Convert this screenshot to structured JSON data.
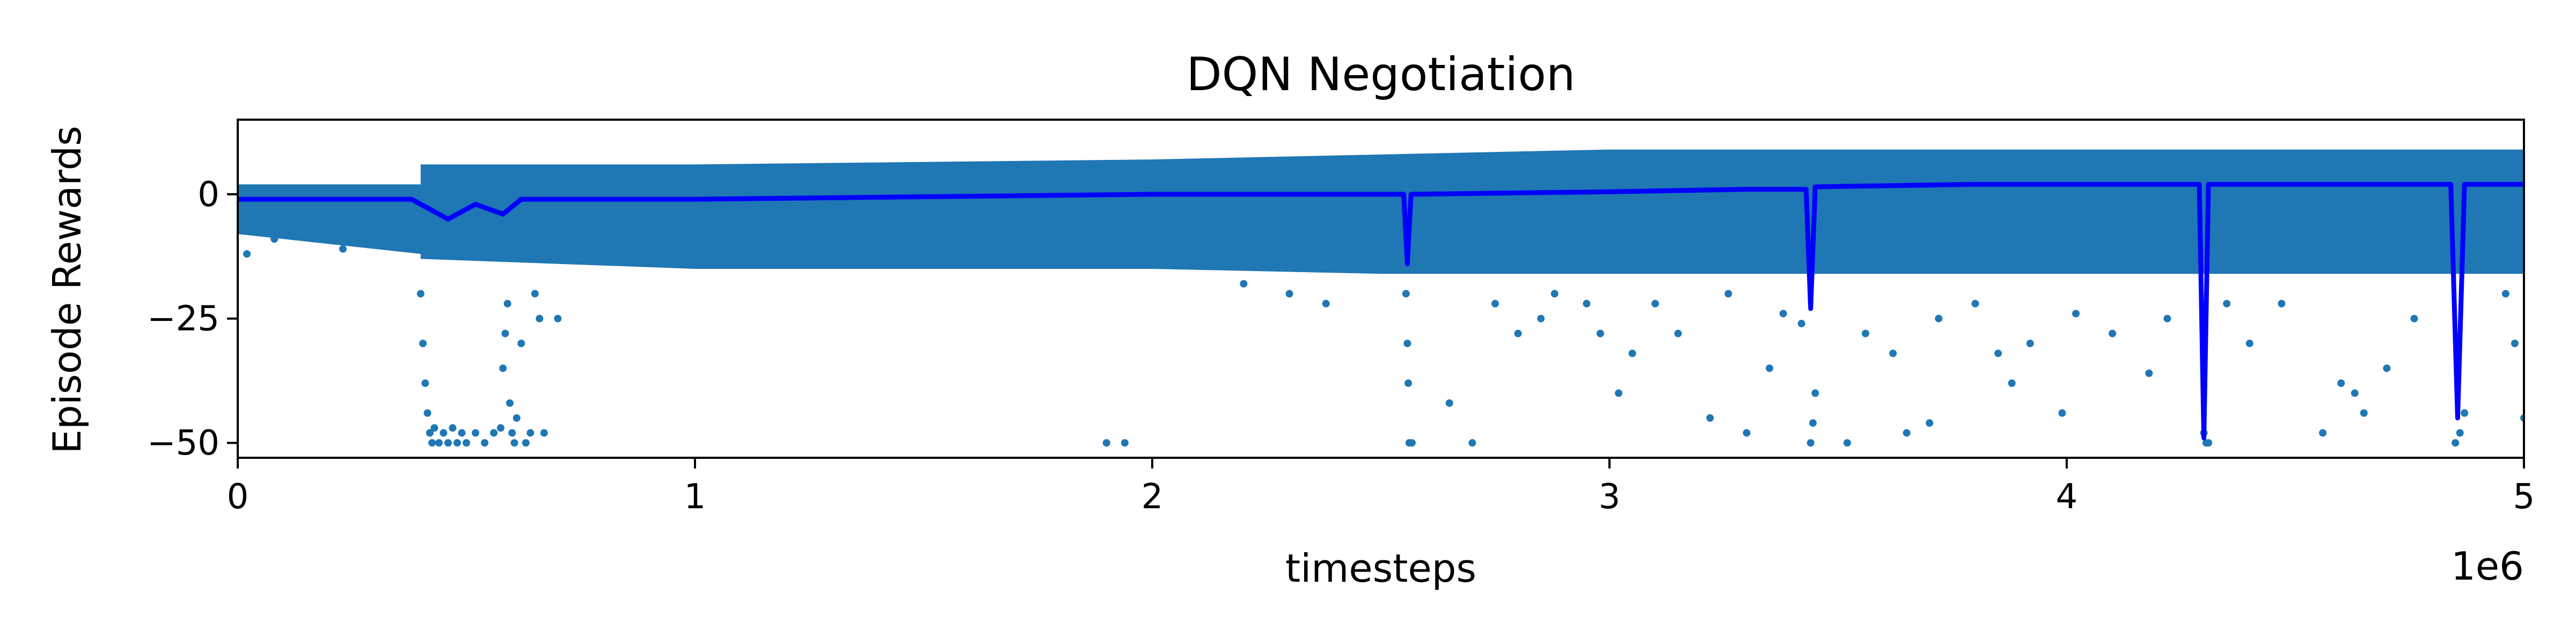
{
  "colors": {
    "scatter": "#1f77b4",
    "mean_line": "#0000ff",
    "axes": "#000000",
    "background": "#ffffff"
  },
  "chart_data": {
    "type": "scatter",
    "title": "DQN Negotiation",
    "xlabel": "timesteps",
    "ylabel": "Episode Rewards",
    "x_offset_label": "1e6",
    "xlim": [
      0,
      5000000
    ],
    "ylim": [
      -53,
      15
    ],
    "x_ticks": [
      {
        "value": 0,
        "label": "0"
      },
      {
        "value": 1000000,
        "label": "1"
      },
      {
        "value": 2000000,
        "label": "2"
      },
      {
        "value": 3000000,
        "label": "3"
      },
      {
        "value": 4000000,
        "label": "4"
      },
      {
        "value": 5000000,
        "label": "5"
      }
    ],
    "y_ticks": [
      {
        "value": 0,
        "label": "0"
      },
      {
        "value": -25,
        "label": "−25"
      },
      {
        "value": -50,
        "label": "−50"
      }
    ],
    "grid": false,
    "legend": "none",
    "series": [
      {
        "kind": "scatter",
        "description_band": [
          {
            "x": 0,
            "low": -8,
            "high": 2
          },
          {
            "x": 400000,
            "low": -12,
            "high": 2
          },
          {
            "x": 400001,
            "low": -13,
            "high": 6
          },
          {
            "x": 1000000,
            "low": -15,
            "high": 6
          },
          {
            "x": 2000000,
            "low": -15,
            "high": 7
          },
          {
            "x": 2500000,
            "low": -16,
            "high": 8
          },
          {
            "x": 3000000,
            "low": -16,
            "high": 9
          },
          {
            "x": 3500000,
            "low": -16,
            "high": 9
          },
          {
            "x": 4000000,
            "low": -16,
            "high": 9
          },
          {
            "x": 4500000,
            "low": -16,
            "high": 9
          },
          {
            "x": 5000000,
            "low": -16,
            "high": 9
          }
        ],
        "outliers": [
          {
            "x": 20000,
            "y": -12
          },
          {
            "x": 80000,
            "y": -9
          },
          {
            "x": 230000,
            "y": -11
          },
          {
            "x": 330000,
            "y": -9
          },
          {
            "x": 400000,
            "y": -20
          },
          {
            "x": 405000,
            "y": -30
          },
          {
            "x": 410000,
            "y": -38
          },
          {
            "x": 415000,
            "y": -44
          },
          {
            "x": 420000,
            "y": -48
          },
          {
            "x": 425000,
            "y": -50
          },
          {
            "x": 430000,
            "y": -47
          },
          {
            "x": 440000,
            "y": -50
          },
          {
            "x": 450000,
            "y": -48
          },
          {
            "x": 460000,
            "y": -50
          },
          {
            "x": 470000,
            "y": -47
          },
          {
            "x": 480000,
            "y": -50
          },
          {
            "x": 490000,
            "y": -48
          },
          {
            "x": 500000,
            "y": -50
          },
          {
            "x": 520000,
            "y": -48
          },
          {
            "x": 540000,
            "y": -50
          },
          {
            "x": 560000,
            "y": -48
          },
          {
            "x": 575000,
            "y": -47
          },
          {
            "x": 580000,
            "y": -35
          },
          {
            "x": 585000,
            "y": -28
          },
          {
            "x": 590000,
            "y": -22
          },
          {
            "x": 595000,
            "y": -42
          },
          {
            "x": 600000,
            "y": -48
          },
          {
            "x": 605000,
            "y": -50
          },
          {
            "x": 610000,
            "y": -45
          },
          {
            "x": 620000,
            "y": -30
          },
          {
            "x": 630000,
            "y": -50
          },
          {
            "x": 640000,
            "y": -48
          },
          {
            "x": 650000,
            "y": -20
          },
          {
            "x": 660000,
            "y": -25
          },
          {
            "x": 670000,
            "y": -48
          },
          {
            "x": 700000,
            "y": -25
          },
          {
            "x": 1900000,
            "y": -50
          },
          {
            "x": 1940000,
            "y": -50
          },
          {
            "x": 2200000,
            "y": -18
          },
          {
            "x": 2300000,
            "y": -20
          },
          {
            "x": 2380000,
            "y": -22
          },
          {
            "x": 2555000,
            "y": -20
          },
          {
            "x": 2558000,
            "y": -30
          },
          {
            "x": 2560000,
            "y": -38
          },
          {
            "x": 2562000,
            "y": -50
          },
          {
            "x": 2568000,
            "y": -50
          },
          {
            "x": 2650000,
            "y": -42
          },
          {
            "x": 2700000,
            "y": -50
          },
          {
            "x": 2750000,
            "y": -22
          },
          {
            "x": 2800000,
            "y": -28
          },
          {
            "x": 2850000,
            "y": -25
          },
          {
            "x": 2880000,
            "y": -20
          },
          {
            "x": 2950000,
            "y": -22
          },
          {
            "x": 2980000,
            "y": -28
          },
          {
            "x": 3020000,
            "y": -40
          },
          {
            "x": 3050000,
            "y": -32
          },
          {
            "x": 3100000,
            "y": -22
          },
          {
            "x": 3150000,
            "y": -28
          },
          {
            "x": 3220000,
            "y": -45
          },
          {
            "x": 3260000,
            "y": -20
          },
          {
            "x": 3300000,
            "y": -48
          },
          {
            "x": 3350000,
            "y": -35
          },
          {
            "x": 3380000,
            "y": -24
          },
          {
            "x": 3420000,
            "y": -26
          },
          {
            "x": 3440000,
            "y": -50
          },
          {
            "x": 3445000,
            "y": -46
          },
          {
            "x": 3450000,
            "y": -40
          },
          {
            "x": 3520000,
            "y": -50
          },
          {
            "x": 3560000,
            "y": -28
          },
          {
            "x": 3620000,
            "y": -32
          },
          {
            "x": 3650000,
            "y": -48
          },
          {
            "x": 3700000,
            "y": -46
          },
          {
            "x": 3720000,
            "y": -25
          },
          {
            "x": 3800000,
            "y": -22
          },
          {
            "x": 3850000,
            "y": -32
          },
          {
            "x": 3880000,
            "y": -38
          },
          {
            "x": 3920000,
            "y": -30
          },
          {
            "x": 3990000,
            "y": -44
          },
          {
            "x": 4020000,
            "y": -24
          },
          {
            "x": 4100000,
            "y": -28
          },
          {
            "x": 4180000,
            "y": -36
          },
          {
            "x": 4220000,
            "y": -25
          },
          {
            "x": 4300000,
            "y": -48
          },
          {
            "x": 4305000,
            "y": -50
          },
          {
            "x": 4310000,
            "y": -50
          },
          {
            "x": 4350000,
            "y": -22
          },
          {
            "x": 4400000,
            "y": -30
          },
          {
            "x": 4470000,
            "y": -22
          },
          {
            "x": 4560000,
            "y": -48
          },
          {
            "x": 4600000,
            "y": -38
          },
          {
            "x": 4630000,
            "y": -40
          },
          {
            "x": 4650000,
            "y": -44
          },
          {
            "x": 4700000,
            "y": -35
          },
          {
            "x": 4760000,
            "y": -25
          },
          {
            "x": 4850000,
            "y": -50
          },
          {
            "x": 4860000,
            "y": -48
          },
          {
            "x": 4870000,
            "y": -44
          },
          {
            "x": 4960000,
            "y": -20
          },
          {
            "x": 4980000,
            "y": -30
          },
          {
            "x": 5000000,
            "y": -45
          }
        ]
      },
      {
        "kind": "line",
        "mean_points": [
          {
            "x": 0,
            "y": -1
          },
          {
            "x": 380000,
            "y": -1
          },
          {
            "x": 400000,
            "y": -2
          },
          {
            "x": 460000,
            "y": -5
          },
          {
            "x": 520000,
            "y": -2
          },
          {
            "x": 580000,
            "y": -4
          },
          {
            "x": 620000,
            "y": -1
          },
          {
            "x": 1000000,
            "y": -1
          },
          {
            "x": 1500000,
            "y": -0.5
          },
          {
            "x": 2000000,
            "y": 0
          },
          {
            "x": 2550000,
            "y": 0
          },
          {
            "x": 2558000,
            "y": -14
          },
          {
            "x": 2566000,
            "y": 0
          },
          {
            "x": 3000000,
            "y": 0.5
          },
          {
            "x": 3300000,
            "y": 1
          },
          {
            "x": 3430000,
            "y": 1
          },
          {
            "x": 3440000,
            "y": -23
          },
          {
            "x": 3450000,
            "y": 1.5
          },
          {
            "x": 3800000,
            "y": 2
          },
          {
            "x": 4290000,
            "y": 2
          },
          {
            "x": 4300000,
            "y": -49
          },
          {
            "x": 4310000,
            "y": 2
          },
          {
            "x": 4840000,
            "y": 2
          },
          {
            "x": 4855000,
            "y": -45
          },
          {
            "x": 4870000,
            "y": 2
          },
          {
            "x": 5000000,
            "y": 2
          }
        ]
      }
    ]
  }
}
